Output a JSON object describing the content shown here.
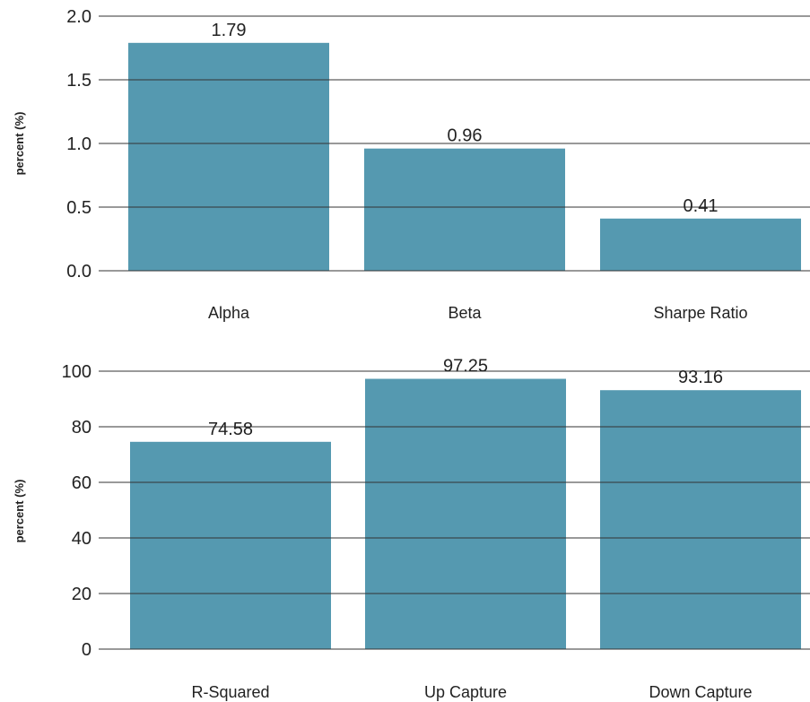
{
  "chart_data": [
    {
      "type": "bar",
      "categories": [
        "Alpha",
        "Beta",
        "Sharpe Ratio"
      ],
      "values": [
        1.79,
        0.96,
        0.41
      ],
      "value_labels": [
        "1.79",
        "0.96",
        "0.41"
      ],
      "ylabel": "percent (%)",
      "ylim": [
        0,
        2.0
      ],
      "yticks": [
        0.0,
        0.5,
        1.0,
        1.5,
        2.0
      ],
      "ytick_labels": [
        "0.0",
        "0.5",
        "1.0",
        "1.5",
        "2.0"
      ],
      "grid": true,
      "bar_color": "#5599b0"
    },
    {
      "type": "bar",
      "categories": [
        "R-Squared",
        "Up Capture",
        "Down Capture"
      ],
      "values": [
        74.58,
        97.25,
        93.16
      ],
      "value_labels": [
        "74.58",
        "97.25",
        "93.16"
      ],
      "ylabel": "percent (%)",
      "ylim": [
        0,
        100
      ],
      "yticks": [
        0,
        20,
        40,
        60,
        80,
        100
      ],
      "ytick_labels": [
        "0",
        "20",
        "40",
        "60",
        "80",
        "100"
      ],
      "grid": true,
      "bar_color": "#5599b0"
    }
  ]
}
